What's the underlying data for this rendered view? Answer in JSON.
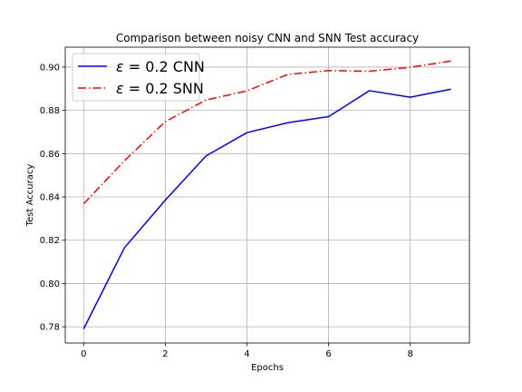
{
  "chart_data": {
    "type": "line",
    "title": "Comparison between noisy CNN and SNN Test accuracy",
    "xlabel": "Epochs",
    "ylabel": "Test Accuracy",
    "xlim": [
      -0.45,
      9.45
    ],
    "ylim": [
      0.7725,
      0.9092
    ],
    "xticks": [
      0,
      2,
      4,
      6,
      8
    ],
    "yticks": [
      0.78,
      0.8,
      0.82,
      0.84,
      0.86,
      0.88,
      0.9
    ],
    "ytick_labels": [
      "0.78",
      "0.80",
      "0.82",
      "0.84",
      "0.86",
      "0.88",
      "0.90"
    ],
    "grid": true,
    "legend_position": "upper-left",
    "x": [
      0,
      1,
      2,
      3,
      4,
      5,
      6,
      7,
      8,
      9
    ],
    "series": [
      {
        "name": "ε = 0.2 CNN",
        "name_symbol": "ε",
        "name_rest": " = 0.2 CNN",
        "color": "#0000ff",
        "style": "solid",
        "values": [
          0.779,
          0.8165,
          0.8385,
          0.859,
          0.8697,
          0.8743,
          0.8771,
          0.8891,
          0.8861,
          0.8898
        ]
      },
      {
        "name": "ε = 0.2 SNN",
        "name_symbol": "ε",
        "name_rest": " = 0.2 SNN",
        "color": "#ff0000",
        "style": "dashdot",
        "values": [
          0.8368,
          0.8567,
          0.8748,
          0.8848,
          0.889,
          0.8966,
          0.8984,
          0.8981,
          0.8999,
          0.9028
        ]
      }
    ]
  }
}
